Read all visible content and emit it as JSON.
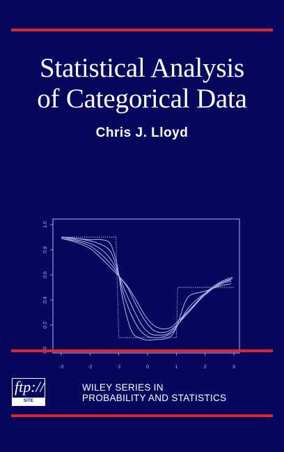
{
  "cover": {
    "background": "#06085e",
    "rule_color": "#e0262b",
    "title_lines": [
      "Statistical Analysis",
      "of Categorical Data"
    ],
    "author": "Chris J. Lloyd",
    "ftp_badge": {
      "main": "ftp://",
      "sub": "SITE AVAILABLE"
    },
    "series_lines": [
      "WILEY SERIES IN",
      "PROBABILITY AND STATISTICS"
    ]
  },
  "chart_data": {
    "type": "line",
    "x_ticks": [
      -3,
      -2,
      -1,
      0,
      1,
      2,
      3
    ],
    "y_ticks": [
      "0.0",
      "0.2",
      "0.4",
      "0.6",
      "0.8",
      "1.0"
    ],
    "xlim": [
      -3,
      3
    ],
    "ylim": [
      0,
      1
    ],
    "line_color": "#aebbe8",
    "step_reference": {
      "style": "dotted",
      "points": [
        [
          -3,
          0.9
        ],
        [
          -1.1,
          0.9
        ],
        [
          -1.0,
          0.1
        ],
        [
          1.0,
          0.1
        ],
        [
          1.05,
          0.5
        ],
        [
          3,
          0.5
        ]
      ]
    },
    "series": [
      {
        "values": [
          [
            -3,
            0.9
          ],
          [
            -2.5,
            0.89
          ],
          [
            -2,
            0.88
          ],
          [
            -1.6,
            0.88
          ],
          [
            -1.3,
            0.85
          ],
          [
            -1.1,
            0.72
          ],
          [
            -1,
            0.6
          ],
          [
            -0.9,
            0.45
          ],
          [
            -0.7,
            0.25
          ],
          [
            -0.5,
            0.13
          ],
          [
            -0.2,
            0.09
          ],
          [
            0,
            0.08
          ],
          [
            0.3,
            0.085
          ],
          [
            0.6,
            0.09
          ],
          [
            0.85,
            0.12
          ],
          [
            1,
            0.18
          ],
          [
            1.15,
            0.28
          ],
          [
            1.3,
            0.38
          ],
          [
            1.5,
            0.44
          ],
          [
            2,
            0.47
          ],
          [
            2.5,
            0.51
          ],
          [
            2.9,
            0.53
          ]
        ]
      },
      {
        "values": [
          [
            -3,
            0.9
          ],
          [
            -2.5,
            0.89
          ],
          [
            -2,
            0.87
          ],
          [
            -1.6,
            0.84
          ],
          [
            -1.3,
            0.79
          ],
          [
            -1.1,
            0.68
          ],
          [
            -1,
            0.6
          ],
          [
            -0.85,
            0.46
          ],
          [
            -0.6,
            0.3
          ],
          [
            -0.3,
            0.17
          ],
          [
            0,
            0.11
          ],
          [
            0.3,
            0.1
          ],
          [
            0.6,
            0.11
          ],
          [
            0.9,
            0.15
          ],
          [
            1.1,
            0.22
          ],
          [
            1.4,
            0.33
          ],
          [
            1.8,
            0.42
          ],
          [
            2.2,
            0.48
          ],
          [
            2.6,
            0.53
          ],
          [
            2.9,
            0.55
          ]
        ]
      },
      {
        "values": [
          [
            -3,
            0.9
          ],
          [
            -2.5,
            0.88
          ],
          [
            -2,
            0.85
          ],
          [
            -1.6,
            0.8
          ],
          [
            -1.3,
            0.73
          ],
          [
            -1.1,
            0.65
          ],
          [
            -1,
            0.6
          ],
          [
            -0.8,
            0.48
          ],
          [
            -0.5,
            0.33
          ],
          [
            -0.2,
            0.2
          ],
          [
            0.1,
            0.13
          ],
          [
            0.4,
            0.12
          ],
          [
            0.7,
            0.13
          ],
          [
            1,
            0.19
          ],
          [
            1.3,
            0.28
          ],
          [
            1.7,
            0.38
          ],
          [
            2.1,
            0.46
          ],
          [
            2.5,
            0.53
          ],
          [
            2.9,
            0.56
          ]
        ]
      },
      {
        "values": [
          [
            -3,
            0.89
          ],
          [
            -2.5,
            0.87
          ],
          [
            -2,
            0.83
          ],
          [
            -1.6,
            0.76
          ],
          [
            -1.3,
            0.69
          ],
          [
            -1.1,
            0.63
          ],
          [
            -1,
            0.59
          ],
          [
            -0.7,
            0.5
          ],
          [
            -0.4,
            0.36
          ],
          [
            -0.1,
            0.24
          ],
          [
            0.2,
            0.16
          ],
          [
            0.5,
            0.14
          ],
          [
            0.8,
            0.16
          ],
          [
            1.1,
            0.22
          ],
          [
            1.5,
            0.32
          ],
          [
            1.9,
            0.42
          ],
          [
            2.3,
            0.5
          ],
          [
            2.7,
            0.55
          ],
          [
            2.95,
            0.57
          ]
        ]
      },
      {
        "values": [
          [
            -3,
            0.89
          ],
          [
            -2.5,
            0.86
          ],
          [
            -2,
            0.81
          ],
          [
            -1.6,
            0.73
          ],
          [
            -1.3,
            0.66
          ],
          [
            -1,
            0.59
          ],
          [
            -0.7,
            0.51
          ],
          [
            -0.4,
            0.4
          ],
          [
            -0.1,
            0.28
          ],
          [
            0.2,
            0.2
          ],
          [
            0.5,
            0.17
          ],
          [
            0.8,
            0.18
          ],
          [
            1.1,
            0.24
          ],
          [
            1.5,
            0.33
          ],
          [
            1.9,
            0.43
          ],
          [
            2.3,
            0.51
          ],
          [
            2.7,
            0.56
          ],
          [
            2.95,
            0.58
          ]
        ]
      }
    ]
  }
}
